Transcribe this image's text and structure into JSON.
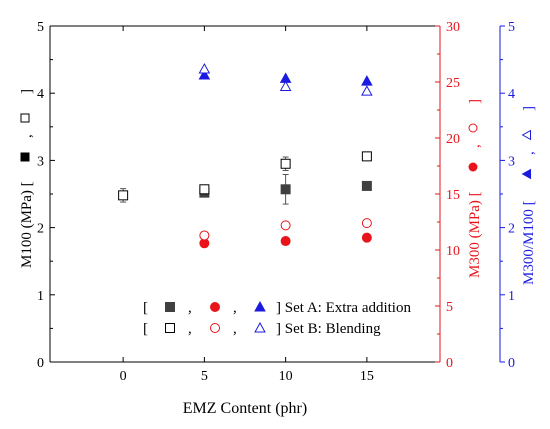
{
  "chart_data": {
    "type": "scatter",
    "xlabel": "EMZ Content (phr)",
    "x_ticks": [
      "0",
      "5",
      "10",
      "15"
    ],
    "xlim": [
      -4.5,
      19.5
    ],
    "axes": {
      "left": {
        "label_main": "M100 (MPa) [",
        "label_bracket": "]",
        "comma": ",",
        "ylim": [
          0,
          5
        ],
        "ticks": [
          "0",
          "1",
          "2",
          "3",
          "4",
          "5"
        ],
        "color": "#000000"
      },
      "right1": {
        "label_main": "M300 (MPa) [",
        "label_bracket": "]",
        "comma": ",",
        "ylim": [
          0,
          30
        ],
        "ticks": [
          "0",
          "5",
          "10",
          "15",
          "20",
          "25",
          "30"
        ],
        "color": "#e8141a"
      },
      "right2": {
        "label_main": "M300/M100 [",
        "label_bracket": "]",
        "comma": ",",
        "ylim": [
          0,
          5
        ],
        "ticks": [
          "0",
          "1",
          "2",
          "3",
          "4",
          "5"
        ],
        "color": "#1a1ae0"
      }
    },
    "series": [
      {
        "set": "A",
        "metric": "M100",
        "axis": "left",
        "marker": "square-filled",
        "color": "#404040",
        "x": [
          5,
          10,
          15
        ],
        "y": [
          2.52,
          2.57,
          2.62
        ],
        "err": [
          0.04,
          0.22,
          0.04
        ]
      },
      {
        "set": "B",
        "metric": "M100",
        "axis": "left",
        "marker": "square-open",
        "color": "#000000",
        "x": [
          0,
          5,
          10,
          15
        ],
        "y": [
          2.48,
          2.57,
          2.95,
          3.06
        ],
        "err": [
          0.1,
          0.05,
          0.1,
          0.06
        ]
      },
      {
        "set": "A",
        "metric": "M300",
        "axis": "right1",
        "marker": "circle-filled",
        "color": "#e8141a",
        "x": [
          5,
          10,
          15
        ],
        "y": [
          10.6,
          10.8,
          11.1
        ]
      },
      {
        "set": "B",
        "metric": "M300",
        "axis": "right1",
        "marker": "circle-open",
        "color": "#e8141a",
        "x": [
          5,
          10,
          15
        ],
        "y": [
          11.3,
          12.2,
          12.4
        ]
      },
      {
        "set": "A",
        "metric": "M300/M100",
        "axis": "right2",
        "marker": "triangle-filled",
        "color": "#1a1ae0",
        "x": [
          5,
          10,
          15
        ],
        "y": [
          4.27,
          4.22,
          4.18
        ]
      },
      {
        "set": "B",
        "metric": "M300/M100",
        "axis": "right2",
        "marker": "triangle-open",
        "color": "#1a1ae0",
        "x": [
          5,
          10,
          15
        ],
        "y": [
          4.36,
          4.1,
          4.03
        ]
      }
    ],
    "legend": {
      "placement": "bottom-right",
      "rows": [
        {
          "bracket_open": "[",
          "sep": ",",
          "text": "] Set A: Extra addition",
          "markers": [
            "square-filled",
            "circle-filled",
            "triangle-filled"
          ]
        },
        {
          "bracket_open": "[",
          "sep": ",",
          "text": "] Set B: Blending",
          "markers": [
            "square-open",
            "circle-open",
            "triangle-open"
          ]
        }
      ]
    }
  }
}
